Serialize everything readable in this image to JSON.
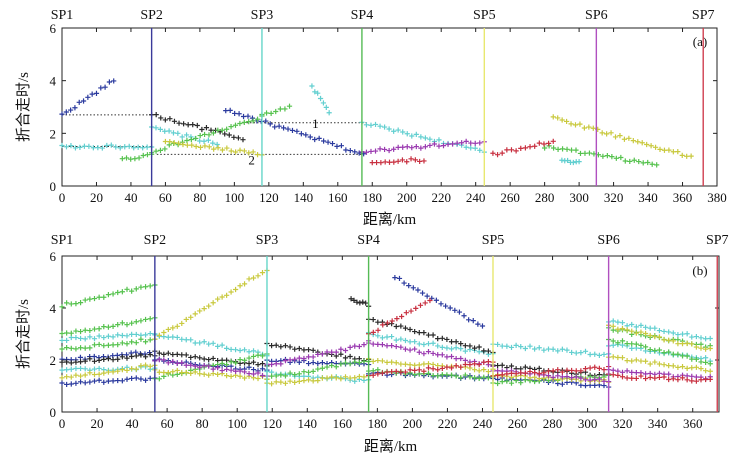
{
  "chart_data": [
    {
      "type": "scatter",
      "panel_label": "(a)",
      "xlabel": "距离/km",
      "ylabel": "折合走时/s",
      "xlim": [
        0,
        380
      ],
      "ylim": [
        0,
        6
      ],
      "xticks": [
        0,
        20,
        40,
        60,
        80,
        100,
        120,
        140,
        160,
        180,
        200,
        220,
        240,
        260,
        280,
        300,
        320,
        340,
        360,
        380
      ],
      "yticks": [
        0,
        2,
        4,
        6
      ],
      "shot_points": [
        {
          "name": "SP1",
          "x": 0,
          "color": "#000000"
        },
        {
          "name": "SP2",
          "x": 52,
          "color": "#3a3a9a"
        },
        {
          "name": "SP3",
          "x": 116,
          "color": "#66d6c8"
        },
        {
          "name": "SP4",
          "x": 174,
          "color": "#55bb55"
        },
        {
          "name": "SP5",
          "x": 245,
          "color": "#e8e870"
        },
        {
          "name": "SP6",
          "x": 310,
          "color": "#b050c0"
        },
        {
          "name": "SP7",
          "x": 372,
          "color": "#d04050"
        }
      ],
      "reference_lines": [
        {
          "label": "1",
          "y": 2.4,
          "x": [
            105,
            178
          ],
          "label_x": 147
        },
        {
          "label": "2",
          "y": 1.2,
          "x": [
            55,
            175
          ],
          "label_x": 110
        },
        {
          "label": "",
          "y": 2.7,
          "x": [
            0,
            52
          ],
          "label_x": null
        },
        {
          "label": "",
          "y": 1.5,
          "x": [
            0,
            52
          ],
          "label_x": null
        }
      ],
      "series": [
        {
          "color": "#2b3a9e",
          "segments": [
            [
              [
                0,
                2.7
              ],
              [
                30,
                4.0
              ]
            ],
            [
              [
                95,
                2.9
              ],
              [
                175,
                1.2
              ]
            ]
          ]
        },
        {
          "color": "#62cfd0",
          "segments": [
            [
              [
                0,
                1.5
              ],
              [
                52,
                1.5
              ]
            ],
            [
              [
                52,
                2.2
              ],
              [
                90,
                1.6
              ]
            ],
            [
              [
                145,
                3.8
              ],
              [
                155,
                2.8
              ]
            ],
            [
              [
                174,
                2.4
              ],
              [
                245,
                1.3
              ]
            ],
            [
              [
                290,
                1.0
              ],
              [
                300,
                0.9
              ]
            ]
          ]
        },
        {
          "color": "#2a2a2a",
          "segments": [
            [
              [
                52,
                2.7
              ],
              [
                105,
                1.8
              ]
            ]
          ]
        },
        {
          "color": "#56c24e",
          "segments": [
            [
              [
                35,
                1.0
              ],
              [
                52,
                1.2
              ]
            ],
            [
              [
                52,
                1.3
              ],
              [
                116,
                2.6
              ]
            ],
            [
              [
                116,
                2.7
              ],
              [
                132,
                3.0
              ]
            ],
            [
              [
                280,
                1.5
              ],
              [
                345,
                0.8
              ]
            ]
          ]
        },
        {
          "color": "#c9c93e",
          "segments": [
            [
              [
                116,
                1.2
              ],
              [
                60,
                1.7
              ]
            ],
            [
              [
                285,
                2.6
              ],
              [
                365,
                1.1
              ]
            ]
          ]
        },
        {
          "color": "#9a3ab0",
          "segments": [
            [
              [
                174,
                1.3
              ],
              [
                245,
                1.7
              ]
            ]
          ]
        },
        {
          "color": "#c83040",
          "segments": [
            [
              [
                180,
                0.9
              ],
              [
                210,
                1.0
              ]
            ],
            [
              [
                250,
                1.2
              ],
              [
                285,
                1.7
              ]
            ]
          ]
        }
      ]
    },
    {
      "type": "scatter",
      "panel_label": "(b)",
      "xlabel": "距离/km",
      "ylabel": "折合走时/s",
      "xlim": [
        0,
        375
      ],
      "ylim": [
        0,
        6
      ],
      "xticks": [
        0,
        20,
        40,
        60,
        80,
        100,
        120,
        140,
        160,
        180,
        200,
        220,
        240,
        260,
        280,
        300,
        320,
        340,
        360
      ],
      "yticks": [
        0,
        2,
        4,
        6
      ],
      "shot_points": [
        {
          "name": "SP1",
          "x": 0,
          "color": "#000000"
        },
        {
          "name": "SP2",
          "x": 53,
          "color": "#3a3a9a"
        },
        {
          "name": "SP3",
          "x": 117,
          "color": "#66d6c8"
        },
        {
          "name": "SP4",
          "x": 175,
          "color": "#55bb55"
        },
        {
          "name": "SP5",
          "x": 246,
          "color": "#e8e870"
        },
        {
          "name": "SP6",
          "x": 312,
          "color": "#b050c0"
        },
        {
          "name": "SP7",
          "x": 374,
          "color": "#d04050"
        }
      ],
      "reference_lines": [],
      "series": [
        {
          "color": "#2b3a9e",
          "segments": [
            [
              [
                0,
                1.1
              ],
              [
                53,
                1.3
              ]
            ],
            [
              [
                0,
                2.0
              ],
              [
                50,
                2.3
              ]
            ],
            [
              [
                53,
                2.0
              ],
              [
                117,
                1.6
              ]
            ],
            [
              [
                117,
                2.0
              ],
              [
                175,
                1.8
              ]
            ],
            [
              [
                175,
                1.5
              ],
              [
                246,
                1.3
              ]
            ],
            [
              [
                190,
                5.2
              ],
              [
                240,
                3.3
              ]
            ],
            [
              [
                246,
                1.3
              ],
              [
                312,
                1.0
              ]
            ]
          ]
        },
        {
          "color": "#62cfd0",
          "segments": [
            [
              [
                0,
                1.6
              ],
              [
                53,
                1.7
              ]
            ],
            [
              [
                0,
                2.8
              ],
              [
                53,
                3.0
              ]
            ],
            [
              [
                53,
                3.0
              ],
              [
                117,
                2.2
              ]
            ],
            [
              [
                117,
                1.5
              ],
              [
                175,
                1.2
              ]
            ],
            [
              [
                175,
                3.0
              ],
              [
                246,
                2.2
              ]
            ],
            [
              [
                246,
                2.6
              ],
              [
                312,
                2.2
              ]
            ],
            [
              [
                312,
                3.5
              ],
              [
                370,
                2.8
              ]
            ],
            [
              [
                312,
                2.6
              ],
              [
                370,
                2.0
              ]
            ]
          ]
        },
        {
          "color": "#2a2a2a",
          "segments": [
            [
              [
                0,
                1.9
              ],
              [
                53,
                2.2
              ]
            ],
            [
              [
                53,
                2.3
              ],
              [
                117,
                1.8
              ]
            ],
            [
              [
                117,
                2.6
              ],
              [
                175,
                2.0
              ]
            ],
            [
              [
                165,
                4.3
              ],
              [
                175,
                4.1
              ]
            ],
            [
              [
                175,
                3.6
              ],
              [
                246,
                2.3
              ]
            ],
            [
              [
                246,
                1.8
              ],
              [
                312,
                1.4
              ]
            ]
          ]
        },
        {
          "color": "#56c24e",
          "segments": [
            [
              [
                0,
                4.1
              ],
              [
                53,
                4.9
              ]
            ],
            [
              [
                0,
                3.0
              ],
              [
                53,
                3.6
              ]
            ],
            [
              [
                0,
                2.4
              ],
              [
                53,
                2.8
              ]
            ],
            [
              [
                53,
                1.3
              ],
              [
                117,
                2.2
              ]
            ],
            [
              [
                117,
                1.3
              ],
              [
                175,
                2.0
              ]
            ],
            [
              [
                175,
                1.6
              ],
              [
                246,
                1.3
              ]
            ],
            [
              [
                246,
                1.1
              ],
              [
                312,
                1.4
              ]
            ],
            [
              [
                312,
                3.2
              ],
              [
                370,
                2.5
              ]
            ],
            [
              [
                312,
                2.8
              ],
              [
                370,
                1.9
              ]
            ]
          ]
        },
        {
          "color": "#c9c93e",
          "segments": [
            [
              [
                0,
                1.3
              ],
              [
                53,
                1.8
              ]
            ],
            [
              [
                53,
                2.8
              ],
              [
                117,
                5.5
              ]
            ],
            [
              [
                53,
                1.6
              ],
              [
                117,
                1.3
              ]
            ],
            [
              [
                117,
                1.1
              ],
              [
                175,
                1.4
              ]
            ],
            [
              [
                175,
                2.0
              ],
              [
                246,
                1.6
              ]
            ],
            [
              [
                246,
                1.4
              ],
              [
                312,
                1.2
              ]
            ],
            [
              [
                312,
                3.3
              ],
              [
                370,
                2.4
              ]
            ],
            [
              [
                312,
                2.1
              ],
              [
                370,
                1.6
              ]
            ]
          ]
        },
        {
          "color": "#9a3ab0",
          "segments": [
            [
              [
                53,
                2.0
              ],
              [
                117,
                1.4
              ]
            ],
            [
              [
                117,
                1.8
              ],
              [
                175,
                2.6
              ]
            ],
            [
              [
                175,
                2.7
              ],
              [
                246,
                1.8
              ]
            ],
            [
              [
                246,
                1.6
              ],
              [
                312,
                1.2
              ]
            ],
            [
              [
                312,
                1.6
              ],
              [
                370,
                1.3
              ]
            ]
          ]
        },
        {
          "color": "#c83040",
          "segments": [
            [
              [
                175,
                3.0
              ],
              [
                210,
                4.3
              ]
            ],
            [
              [
                175,
                1.4
              ],
              [
                246,
                1.9
              ]
            ],
            [
              [
                246,
                1.4
              ],
              [
                312,
                1.7
              ]
            ],
            [
              [
                312,
                1.4
              ],
              [
                370,
                1.2
              ]
            ]
          ]
        }
      ]
    }
  ]
}
